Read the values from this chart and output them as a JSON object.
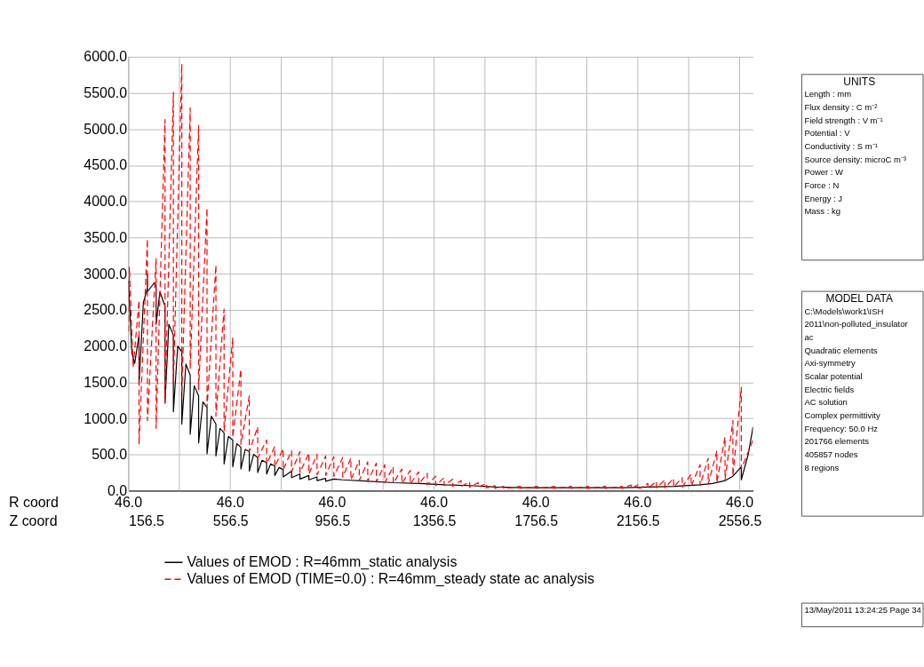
{
  "chart_data": {
    "type": "line",
    "xlabel": "Z coord",
    "xlim": [
      156.5,
      2609
    ],
    "xticks": [
      156.5,
      {
        "value": 356.5,
        "label": null
      },
      556.5,
      {
        "value": 756.5,
        "label": null
      },
      956.5,
      {
        "value": 1156.5,
        "label": null
      },
      1356.5,
      {
        "value": 1556.5,
        "label": null
      },
      1756.5,
      {
        "value": 1956.5,
        "label": null
      },
      2156.5,
      {
        "value": 2356.5,
        "label": null
      },
      2556.5
    ],
    "ylim": [
      0,
      6000
    ],
    "yticks": [
      {
        "value": 0,
        "label": "0.0"
      },
      {
        "value": 500,
        "label": "500.0"
      },
      {
        "value": 1000,
        "label": "1000.0"
      },
      {
        "value": 1500,
        "label": "1500.0"
      },
      {
        "value": 2000,
        "label": "2000.0"
      },
      {
        "value": 2500,
        "label": "2500.0"
      },
      {
        "value": 3000,
        "label": "3000.0"
      },
      {
        "value": 3500,
        "label": "3500.0"
      },
      {
        "value": 4000,
        "label": "4000.0"
      },
      {
        "value": 4500,
        "label": "4500.0"
      },
      {
        "value": 5000,
        "label": "5000.0"
      },
      {
        "value": 5500,
        "label": "5500.0"
      },
      {
        "value": 6000,
        "label": "6000.0"
      }
    ],
    "grid": true,
    "legend": "bottom",
    "series": [
      {
        "name": "Values of EMOD : R=46mm_static analysis",
        "color": "#000000",
        "line_style": "solid",
        "x": [
          156.5,
          170,
          181,
          198,
          198,
          215,
          231,
          231,
          231,
          257,
          265,
          265,
          280,
          300,
          300,
          315,
          333,
          333,
          350,
          366,
          366,
          382,
          399,
          399,
          415,
          432,
          432,
          449,
          465,
          465,
          482,
          500,
          500,
          516,
          532,
          532,
          549,
          566,
          566,
          582,
          598,
          598,
          615,
          631,
          631,
          648,
          664,
          664,
          681,
          699,
          699,
          715,
          731,
          731,
          748,
          764,
          764,
          797,
          797,
          830,
          830,
          865,
          865,
          897,
          897,
          931,
          931,
          963,
          998,
          1100,
          1200,
          1300,
          1400,
          1500,
          1600,
          1700,
          1800,
          1900,
          2000,
          2100,
          2200,
          2300,
          2400,
          2450,
          2500,
          2530,
          2563,
          2563,
          2590,
          2609
        ],
        "values": [
          2900,
          1900,
          1760,
          2150,
          1470,
          2600,
          2800,
          2990,
          2750,
          2870,
          2840,
          2300,
          2750,
          2550,
          1210,
          2300,
          2150,
          1090,
          2000,
          1920,
          920,
          1750,
          1600,
          780,
          1450,
          1310,
          660,
          1230,
          1150,
          510,
          1030,
          920,
          480,
          860,
          800,
          370,
          750,
          700,
          330,
          650,
          600,
          300,
          570,
          540,
          270,
          500,
          460,
          250,
          420,
          390,
          230,
          370,
          340,
          210,
          320,
          290,
          190,
          270,
          180,
          230,
          160,
          210,
          150,
          190,
          140,
          170,
          130,
          160,
          150,
          130,
          110,
          100,
          80,
          70,
          50,
          40,
          40,
          40,
          40,
          40,
          50,
          60,
          80,
          100,
          140,
          200,
          330,
          150,
          500,
          880
        ]
      },
      {
        "name": "Values of EMOD (TIME=0.0) : R=46mm_steady state ac analysis",
        "color": "#ff0000",
        "line_style": "dashed",
        "x": [
          156.5,
          160,
          175,
          198,
          198,
          231,
          231,
          265,
          265,
          300,
          300,
          333,
          333,
          366,
          366,
          399,
          399,
          432,
          432,
          465,
          465,
          500,
          500,
          532,
          532,
          566,
          566,
          598,
          598,
          631,
          631,
          664,
          664,
          699,
          699,
          731,
          731,
          764,
          764,
          797,
          797,
          830,
          830,
          865,
          865,
          897,
          897,
          931,
          931,
          963,
          963,
          998,
          998,
          1030,
          1030,
          1063,
          1063,
          1096,
          1096,
          1130,
          1130,
          1163,
          1163,
          1196,
          1196,
          1230,
          1230,
          1263,
          1263,
          1296,
          1296,
          1330,
          1330,
          1363,
          1363,
          1396,
          1396,
          1430,
          1430,
          1463,
          1463,
          1496,
          1496,
          1530,
          1530,
          1563,
          1563,
          1596,
          1596,
          1630,
          1630,
          1696,
          1696,
          1763,
          1763,
          1830,
          1830,
          1896,
          1896,
          1963,
          1963,
          2030,
          2030,
          2096,
          2096,
          2130,
          2130,
          2163,
          2163,
          2196,
          2196,
          2230,
          2230,
          2263,
          2263,
          2297,
          2297,
          2331,
          2331,
          2366,
          2366,
          2401,
          2401,
          2433,
          2433,
          2467,
          2467,
          2499,
          2499,
          2530,
          2530,
          2563,
          2563,
          2609
        ],
        "values": [
          2200,
          3090,
          1700,
          2630,
          640,
          3480,
          970,
          3210,
          860,
          5130,
          1220,
          5510,
          1470,
          5900,
          1340,
          5290,
          1680,
          5050,
          1400,
          3910,
          1150,
          3120,
          1030,
          2510,
          820,
          2110,
          740,
          1680,
          640,
          1310,
          540,
          880,
          450,
          700,
          370,
          610,
          330,
          580,
          290,
          550,
          260,
          540,
          250,
          520,
          230,
          500,
          220,
          480,
          210,
          470,
          200,
          460,
          190,
          450,
          150,
          420,
          140,
          400,
          130,
          380,
          120,
          360,
          110,
          330,
          100,
          300,
          100,
          280,
          90,
          260,
          90,
          240,
          80,
          200,
          70,
          180,
          70,
          160,
          60,
          140,
          60,
          120,
          50,
          110,
          50,
          100,
          40,
          70,
          30,
          60,
          30,
          60,
          30,
          60,
          30,
          60,
          30,
          60,
          30,
          60,
          30,
          60,
          30,
          60,
          30,
          80,
          30,
          90,
          30,
          100,
          30,
          130,
          40,
          150,
          40,
          170,
          50,
          180,
          50,
          230,
          60,
          360,
          70,
          450,
          90,
          550,
          110,
          740,
          150,
          970,
          200,
          1430,
          300,
          700
        ]
      }
    ],
    "annotations": [
      "UNITS\nLength : mm\nFlux density : C m⁻²\nField strength : V m⁻¹\nPotential : V\nConductivity : S m⁻¹\nSource density: microC m⁻³\nPower : W\nForce : N\nEnergy : J\nMass : kg",
      "MODEL DATA\nC:\\Models\\work1\\ISH\n2011\\non-polluted_insulator\nac\nQuadratic elements\nAxi-symmetry\nScalar potential\nElectric fields\nAC solution\n  Complex permittivity\nFrequency: 50.0 Hz\n201766 elements\n405857 nodes\n8 regions",
      "13/May/2011 13:24:25 Page 34",
      "R coord",
      "46.0",
      "46.0",
      "46.0",
      "46.0",
      "46.0",
      "46.0",
      "46.0"
    ]
  }
}
